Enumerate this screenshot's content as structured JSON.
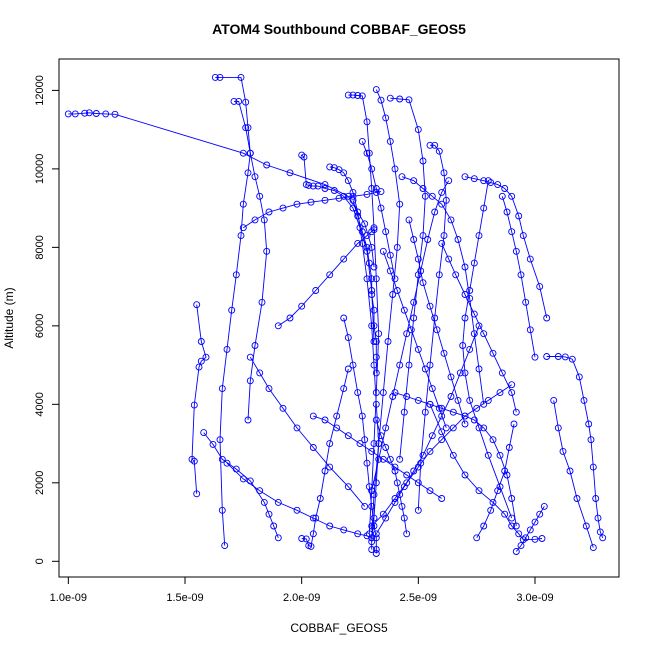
{
  "chart_data": {
    "type": "scatter",
    "title": "ATOM4 Southbound COBBAF_GEOS5",
    "xlabel": "COBBAF_GEOS5",
    "ylabel": "Altitude (m)",
    "xlim": [
      9.6e-10,
      3.36e-09
    ],
    "ylim": [
      -400,
      12800
    ],
    "xticks": [
      1e-09,
      1.5e-09,
      2e-09,
      2.5e-09,
      3e-09
    ],
    "xtick_labels": [
      "1.0e-09",
      "1.5e-09",
      "2.0e-09",
      "2.5e-09",
      "3.0e-09"
    ],
    "yticks": [
      0,
      2000,
      4000,
      6000,
      8000,
      10000,
      12000
    ],
    "ytick_labels": [
      "0",
      "2000",
      "4000",
      "6000",
      "8000",
      "10000",
      "12000"
    ],
    "grid": false,
    "marker": "open-circle",
    "color": "#0000ff",
    "series": [
      {
        "x": [
          1e-09,
          1.03e-09,
          1.07e-09,
          1.09e-09,
          1.12e-09,
          1.16e-09,
          1.2e-09,
          1.75e-09,
          1.85e-09,
          1.95e-09,
          2.1e-09,
          2.2e-09,
          2.27e-09,
          2.3e-09,
          2.31e-09
        ],
        "y": [
          11400,
          11400,
          11420,
          11430,
          11410,
          11400,
          11390,
          10400,
          10100,
          9900,
          9600,
          9300,
          8600,
          8000,
          7500
        ]
      },
      {
        "x": [
          1.63e-09,
          1.65e-09,
          1.74e-09,
          1.76e-09,
          1.77e-09,
          1.78e-09,
          1.77e-09,
          1.75e-09,
          1.74e-09,
          1.72e-09,
          1.7e-09,
          1.68e-09,
          1.66e-09,
          1.65e-09,
          1.66e-09,
          1.67e-09
        ],
        "y": [
          12330,
          12330,
          12330,
          11700,
          11050,
          10400,
          9900,
          9100,
          8300,
          7300,
          6400,
          5400,
          4400,
          3100,
          1300,
          400
        ]
      },
      {
        "x": [
          1.71e-09,
          1.73e-09,
          1.76e-09,
          1.78e-09,
          1.8e-09,
          1.82e-09,
          1.84e-09,
          1.85e-09,
          1.83e-09,
          1.8e-09,
          1.78e-09,
          1.77e-09
        ],
        "y": [
          11720,
          11720,
          11050,
          10400,
          9800,
          9300,
          8700,
          7900,
          6600,
          5500,
          4600,
          3600
        ]
      },
      {
        "x": [
          1.55e-09,
          1.57e-09,
          1.59e-09,
          1.57e-09,
          1.56e-09,
          1.54e-09,
          1.53e-09,
          1.54e-09,
          1.55e-09
        ],
        "y": [
          6540,
          5600,
          5200,
          5100,
          4950,
          3980,
          2600,
          2550,
          1720
        ]
      },
      {
        "x": [
          1.58e-09,
          1.62e-09,
          1.66e-09,
          1.72e-09,
          1.78e-09,
          1.84e-09,
          1.86e-09,
          1.88e-09,
          1.9e-09
        ],
        "y": [
          3280,
          2980,
          2600,
          2350,
          2050,
          1500,
          1200,
          900,
          600
        ]
      },
      {
        "x": [
          2e-09,
          2.01e-09,
          2.02e-09,
          2.03e-09,
          2.05e-09,
          2.07e-09,
          2.1e-09,
          2.14e-09,
          2.18e-09,
          2.22e-09,
          2.25e-09,
          2.28e-09,
          2.3e-09,
          2.31e-09
        ],
        "y": [
          10350,
          10300,
          9600,
          9580,
          9560,
          9560,
          9500,
          9450,
          9300,
          9000,
          8500,
          7900,
          6900,
          5600
        ]
      },
      {
        "x": [
          2e-09,
          2.02e-09,
          2.03e-09,
          2.04e-09,
          2.05e-09,
          2.06e-09,
          2.08e-09,
          2.1e-09,
          2.12e-09,
          2.15e-09,
          2.18e-09,
          2.2e-09
        ],
        "y": [
          580,
          570,
          400,
          380,
          700,
          1100,
          1600,
          2300,
          3000,
          3700,
          4400,
          4900
        ]
      },
      {
        "x": [
          2.12e-09,
          2.14e-09,
          2.16e-09,
          2.18e-09,
          2.2e-09,
          2.22e-09,
          2.24e-09,
          2.26e-09,
          2.28e-09,
          2.3e-09,
          2.31e-09,
          2.32e-09,
          2.33e-09,
          2.32e-09,
          2.31e-09,
          2.3e-09,
          2.3e-09
        ],
        "y": [
          10050,
          10030,
          9980,
          9900,
          9700,
          9400,
          8900,
          8100,
          7200,
          6000,
          5000,
          4000,
          3000,
          2000,
          1100,
          500,
          300
        ]
      },
      {
        "x": [
          2.2e-09,
          2.22e-09,
          2.24e-09,
          2.26e-09,
          2.28e-09,
          2.29e-09,
          2.3e-09,
          2.31e-09,
          2.32e-09,
          2.33e-09,
          2.32e-09,
          2.31e-09,
          2.3e-09,
          2.29e-09
        ],
        "y": [
          11880,
          11880,
          11870,
          11860,
          11200,
          10400,
          9500,
          8500,
          7200,
          5800,
          4300,
          3000,
          1800,
          700
        ]
      },
      {
        "x": [
          2.32e-09,
          2.34e-09,
          2.36e-09,
          2.38e-09,
          2.4e-09,
          2.42e-09,
          2.41e-09,
          2.39e-09,
          2.37e-09,
          2.35e-09,
          2.33e-09,
          2.31e-09,
          2.3e-09
        ],
        "y": [
          12020,
          11750,
          11300,
          10700,
          10000,
          9100,
          8000,
          6800,
          5600,
          4300,
          3000,
          1700,
          600
        ]
      },
      {
        "x": [
          2.38e-09,
          2.42e-09,
          2.46e-09,
          2.5e-09,
          2.52e-09,
          2.53e-09,
          2.52e-09,
          2.5e-09,
          2.48e-09,
          2.46e-09,
          2.44e-09,
          2.42e-09
        ],
        "y": [
          11800,
          11780,
          11760,
          11000,
          10200,
          9300,
          8300,
          7300,
          6200,
          5000,
          3800,
          2600
        ]
      },
      {
        "x": [
          2.55e-09,
          2.57e-09,
          2.59e-09,
          2.61e-09,
          2.62e-09,
          2.61e-09,
          2.59e-09,
          2.57e-09,
          2.55e-09,
          2.53e-09,
          2.51e-09,
          2.5e-09
        ],
        "y": [
          10600,
          10600,
          10450,
          9900,
          9200,
          8300,
          7300,
          6200,
          5000,
          3800,
          2500,
          1300
        ]
      },
      {
        "x": [
          2.43e-09,
          2.48e-09,
          2.52e-09,
          2.56e-09,
          2.6e-09,
          2.64e-09,
          2.67e-09,
          2.7e-09,
          2.72e-09,
          2.74e-09,
          2.76e-09,
          2.78e-09
        ],
        "y": [
          9800,
          9700,
          9500,
          9300,
          9100,
          8700,
          8200,
          7500,
          6700,
          5800,
          4900,
          4000
        ]
      },
      {
        "x": [
          2.7e-09,
          2.74e-09,
          2.78e-09,
          2.81e-09,
          2.84e-09,
          2.87e-09,
          2.9e-09,
          2.93e-09,
          2.95e-09,
          2.98e-09,
          3.02e-09,
          3.05e-09
        ],
        "y": [
          9800,
          9750,
          9700,
          9650,
          9600,
          9500,
          9300,
          8800,
          8300,
          7700,
          7000,
          6200
        ]
      },
      {
        "x": [
          3.05e-09,
          3.1e-09,
          3.13e-09,
          3.16e-09,
          3.19e-09,
          3.21e-09,
          3.23e-09,
          3.24e-09,
          3.25e-09,
          3.26e-09,
          3.27e-09,
          3.28e-09,
          3.29e-09
        ],
        "y": [
          5220,
          5220,
          5210,
          5150,
          4700,
          4100,
          3500,
          3100,
          2400,
          1600,
          1100,
          750,
          600
        ]
      },
      {
        "x": [
          3.08e-09,
          3.1e-09,
          3.12e-09,
          3.15e-09,
          3.18e-09,
          3.22e-09,
          3.25e-09
        ],
        "y": [
          4100,
          3400,
          2800,
          2300,
          1600,
          900,
          350
        ]
      },
      {
        "x": [
          2.55e-09,
          2.6e-09,
          2.65e-09,
          2.7e-09,
          2.76e-09,
          2.82e-09,
          2.87e-09,
          2.9e-09,
          2.93e-09,
          2.95e-09,
          3e-09,
          3.03e-09
        ],
        "y": [
          4000,
          3300,
          2700,
          2200,
          1800,
          1500,
          1200,
          900,
          700,
          550,
          560,
          580
        ]
      },
      {
        "x": [
          2.3e-09,
          2.35e-09,
          2.4e-09,
          2.45e-09,
          2.5e-09,
          2.55e-09,
          2.6e-09,
          2.65e-09,
          2.7e-09,
          2.75e-09,
          2.8e-09,
          2.85e-09,
          2.9e-09
        ],
        "y": [
          900,
          1200,
          1600,
          2000,
          2400,
          2800,
          3100,
          3400,
          3700,
          3900,
          4100,
          4300,
          4500
        ]
      },
      {
        "x": [
          2.32e-09,
          2.36e-09,
          2.4e-09,
          2.44e-09,
          2.48e-09,
          2.52e-09,
          2.56e-09,
          2.6e-09,
          2.64e-09,
          2.68e-09,
          2.72e-09,
          2.76e-09
        ],
        "y": [
          700,
          1100,
          1500,
          1900,
          2300,
          2700,
          3200,
          3700,
          4200,
          4800,
          5400,
          6000
        ]
      },
      {
        "x": [
          2.3e-09,
          2.33e-09,
          2.36e-09,
          2.39e-09,
          2.42e-09,
          2.45e-09,
          2.48e-09,
          2.51e-09,
          2.54e-09,
          2.57e-09,
          2.6e-09,
          2.63e-09
        ],
        "y": [
          1800,
          2600,
          3400,
          4200,
          5000,
          5800,
          6600,
          7400,
          8200,
          8900,
          9400,
          9700
        ]
      },
      {
        "x": [
          2.8e-09,
          2.78e-09,
          2.76e-09,
          2.74e-09,
          2.72e-09,
          2.7e-09,
          2.69e-09,
          2.7e-09,
          2.72e-09,
          2.76e-09,
          2.8e-09,
          2.85e-09,
          2.9e-09
        ],
        "y": [
          9700,
          9000,
          8300,
          7600,
          6900,
          6200,
          5500,
          4800,
          4100,
          3400,
          2700,
          1900,
          1100
        ]
      },
      {
        "x": [
          2.18e-09,
          2.2e-09,
          2.22e-09,
          2.24e-09,
          2.26e-09,
          2.27e-09,
          2.28e-09,
          2.29e-09,
          2.3e-09,
          2.31e-09,
          2.32e-09,
          2.32e-09,
          2.32e-09
        ],
        "y": [
          6200,
          5700,
          5000,
          4300,
          3700,
          3100,
          2500,
          1900,
          1400,
          900,
          600,
          300,
          200
        ]
      },
      {
        "x": [
          1.68e-09,
          1.75e-09,
          1.82e-09,
          1.9e-09,
          1.98e-09,
          2.05e-09,
          2.12e-09,
          2.18e-09,
          2.24e-09,
          2.28e-09,
          2.3e-09
        ],
        "y": [
          2500,
          2100,
          1800,
          1500,
          1300,
          1100,
          900,
          800,
          700,
          650,
          600
        ]
      },
      {
        "x": [
          1.78e-09,
          1.82e-09,
          1.86e-09,
          1.92e-09,
          1.98e-09,
          2.05e-09,
          2.12e-09,
          2.2e-09,
          2.27e-09
        ],
        "y": [
          5200,
          4800,
          4400,
          3900,
          3400,
          2900,
          2400,
          1900,
          1400
        ]
      },
      {
        "x": [
          1.9e-09,
          1.95e-09,
          2e-09,
          2.06e-09,
          2.12e-09,
          2.18e-09,
          2.24e-09,
          2.28e-09,
          2.3e-09,
          2.31e-09
        ],
        "y": [
          6000,
          6200,
          6500,
          6900,
          7300,
          7700,
          8100,
          8300,
          8400,
          8450
        ]
      },
      {
        "x": [
          2.22e-09,
          2.24e-09,
          2.26e-09,
          2.28e-09,
          2.29e-09,
          2.3e-09,
          2.3e-09,
          2.31e-09,
          2.31e-09,
          2.32e-09,
          2.32e-09,
          2.32e-09
        ],
        "y": [
          9200,
          8800,
          8400,
          8000,
          7600,
          7200,
          6800,
          6400,
          6000,
          5600,
          5200,
          4800
        ]
      },
      {
        "x": [
          2.32e-09,
          2.34e-09,
          2.36e-09,
          2.38e-09,
          2.4e-09,
          2.41e-09,
          2.42e-09,
          2.43e-09,
          2.44e-09,
          2.45e-09
        ],
        "y": [
          3600,
          3200,
          2900,
          2600,
          2300,
          2000,
          1700,
          1400,
          1100,
          700
        ]
      },
      {
        "x": [
          2.6e-09,
          2.63e-09,
          2.66e-09,
          2.7e-09,
          2.74e-09,
          2.78e-09,
          2.82e-09,
          2.86e-09,
          2.9e-09,
          2.92e-09
        ],
        "y": [
          8100,
          7700,
          7300,
          6800,
          6300,
          5800,
          5300,
          4800,
          4300,
          3800
        ]
      },
      {
        "x": [
          2.4e-09,
          2.45e-09,
          2.5e-09,
          2.55e-09,
          2.6e-09,
          2.65e-09,
          2.7e-09,
          2.74e-09,
          2.78e-09,
          2.82e-09,
          2.85e-09,
          2.88e-09,
          2.9e-09,
          2.92e-09
        ],
        "y": [
          4300,
          4200,
          4100,
          4000,
          3900,
          3800,
          3700,
          3600,
          3400,
          3100,
          2700,
          2200,
          1600,
          900
        ]
      },
      {
        "x": [
          2.86e-09,
          2.88e-09,
          2.9e-09,
          2.92e-09,
          2.94e-09,
          2.96e-09,
          2.98e-09,
          3e-09
        ],
        "y": [
          9300,
          8900,
          8400,
          7900,
          7300,
          6600,
          5900,
          5200
        ]
      },
      {
        "x": [
          2.75e-09,
          2.78e-09,
          2.81e-09,
          2.84e-09,
          2.87e-09,
          2.89e-09,
          2.91e-09
        ],
        "y": [
          600,
          900,
          1300,
          1800,
          2300,
          2900,
          3500
        ]
      },
      {
        "x": [
          2.92e-09,
          2.94e-09,
          2.96e-09,
          2.98e-09,
          3e-09,
          3.02e-09,
          3.04e-09
        ],
        "y": [
          250,
          400,
          600,
          800,
          1000,
          1200,
          1400
        ]
      },
      {
        "x": [
          1.75e-09,
          1.8e-09,
          1.86e-09,
          1.92e-09,
          1.98e-09,
          2.04e-09,
          2.1e-09,
          2.16e-09,
          2.22e-09,
          2.28e-09,
          2.32e-09,
          2.34e-09
        ],
        "y": [
          8500,
          8700,
          8900,
          9000,
          9100,
          9150,
          9200,
          9250,
          9300,
          9350,
          9400,
          9420
        ]
      },
      {
        "x": [
          2.05e-09,
          2.1e-09,
          2.15e-09,
          2.2e-09,
          2.25e-09,
          2.3e-09,
          2.35e-09,
          2.4e-09,
          2.45e-09,
          2.5e-09,
          2.55e-09,
          2.6e-09
        ],
        "y": [
          3700,
          3600,
          3400,
          3200,
          3000,
          2800,
          2600,
          2400,
          2200,
          2000,
          1800,
          1600
        ]
      },
      {
        "x": [
          2.35e-09,
          2.38e-09,
          2.41e-09,
          2.44e-09,
          2.47e-09,
          2.5e-09,
          2.53e-09,
          2.56e-09,
          2.59e-09,
          2.62e-09
        ],
        "y": [
          7900,
          7400,
          6900,
          6400,
          5900,
          5400,
          4900,
          4400,
          3900,
          3400
        ]
      },
      {
        "x": [
          2.26e-09,
          2.28e-09,
          2.3e-09,
          2.32e-09,
          2.34e-09,
          2.36e-09,
          2.38e-09,
          2.4e-09
        ],
        "y": [
          10700,
          10400,
          10000,
          9500,
          9000,
          8400,
          7800,
          7200
        ]
      },
      {
        "x": [
          2.46e-09,
          2.48e-09,
          2.5e-09,
          2.52e-09,
          2.55e-09,
          2.58e-09,
          2.61e-09,
          2.64e-09,
          2.67e-09,
          2.7e-09
        ],
        "y": [
          8700,
          8200,
          7700,
          7100,
          6500,
          5900,
          5300,
          4700,
          4100,
          3500
        ]
      }
    ]
  }
}
